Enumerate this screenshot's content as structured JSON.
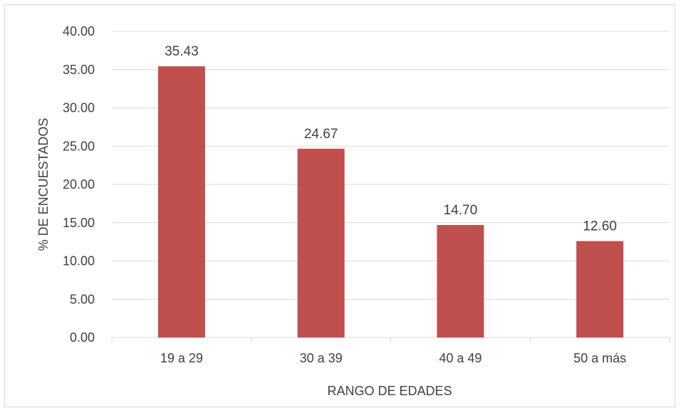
{
  "chart_data": {
    "type": "bar",
    "categories": [
      "19 a 29",
      "30 a 39",
      "40 a 49",
      "50 a más"
    ],
    "values": [
      35.43,
      24.67,
      14.7,
      12.6
    ],
    "data_labels": [
      "35.43",
      "24.67",
      "14.70",
      "12.60"
    ],
    "y_ticks": [
      "0.00",
      "5.00",
      "10.00",
      "15.00",
      "20.00",
      "25.00",
      "30.00",
      "35.00",
      "40.00"
    ],
    "xlabel": "RANGO DE EDADES",
    "ylabel": "% DE ENCUESTADOS",
    "ylim": [
      0,
      40
    ],
    "grid": true,
    "legend": "none",
    "colors": {
      "bar": "#c0504d",
      "grid": "#d9d9d9",
      "text": "#404040"
    }
  }
}
